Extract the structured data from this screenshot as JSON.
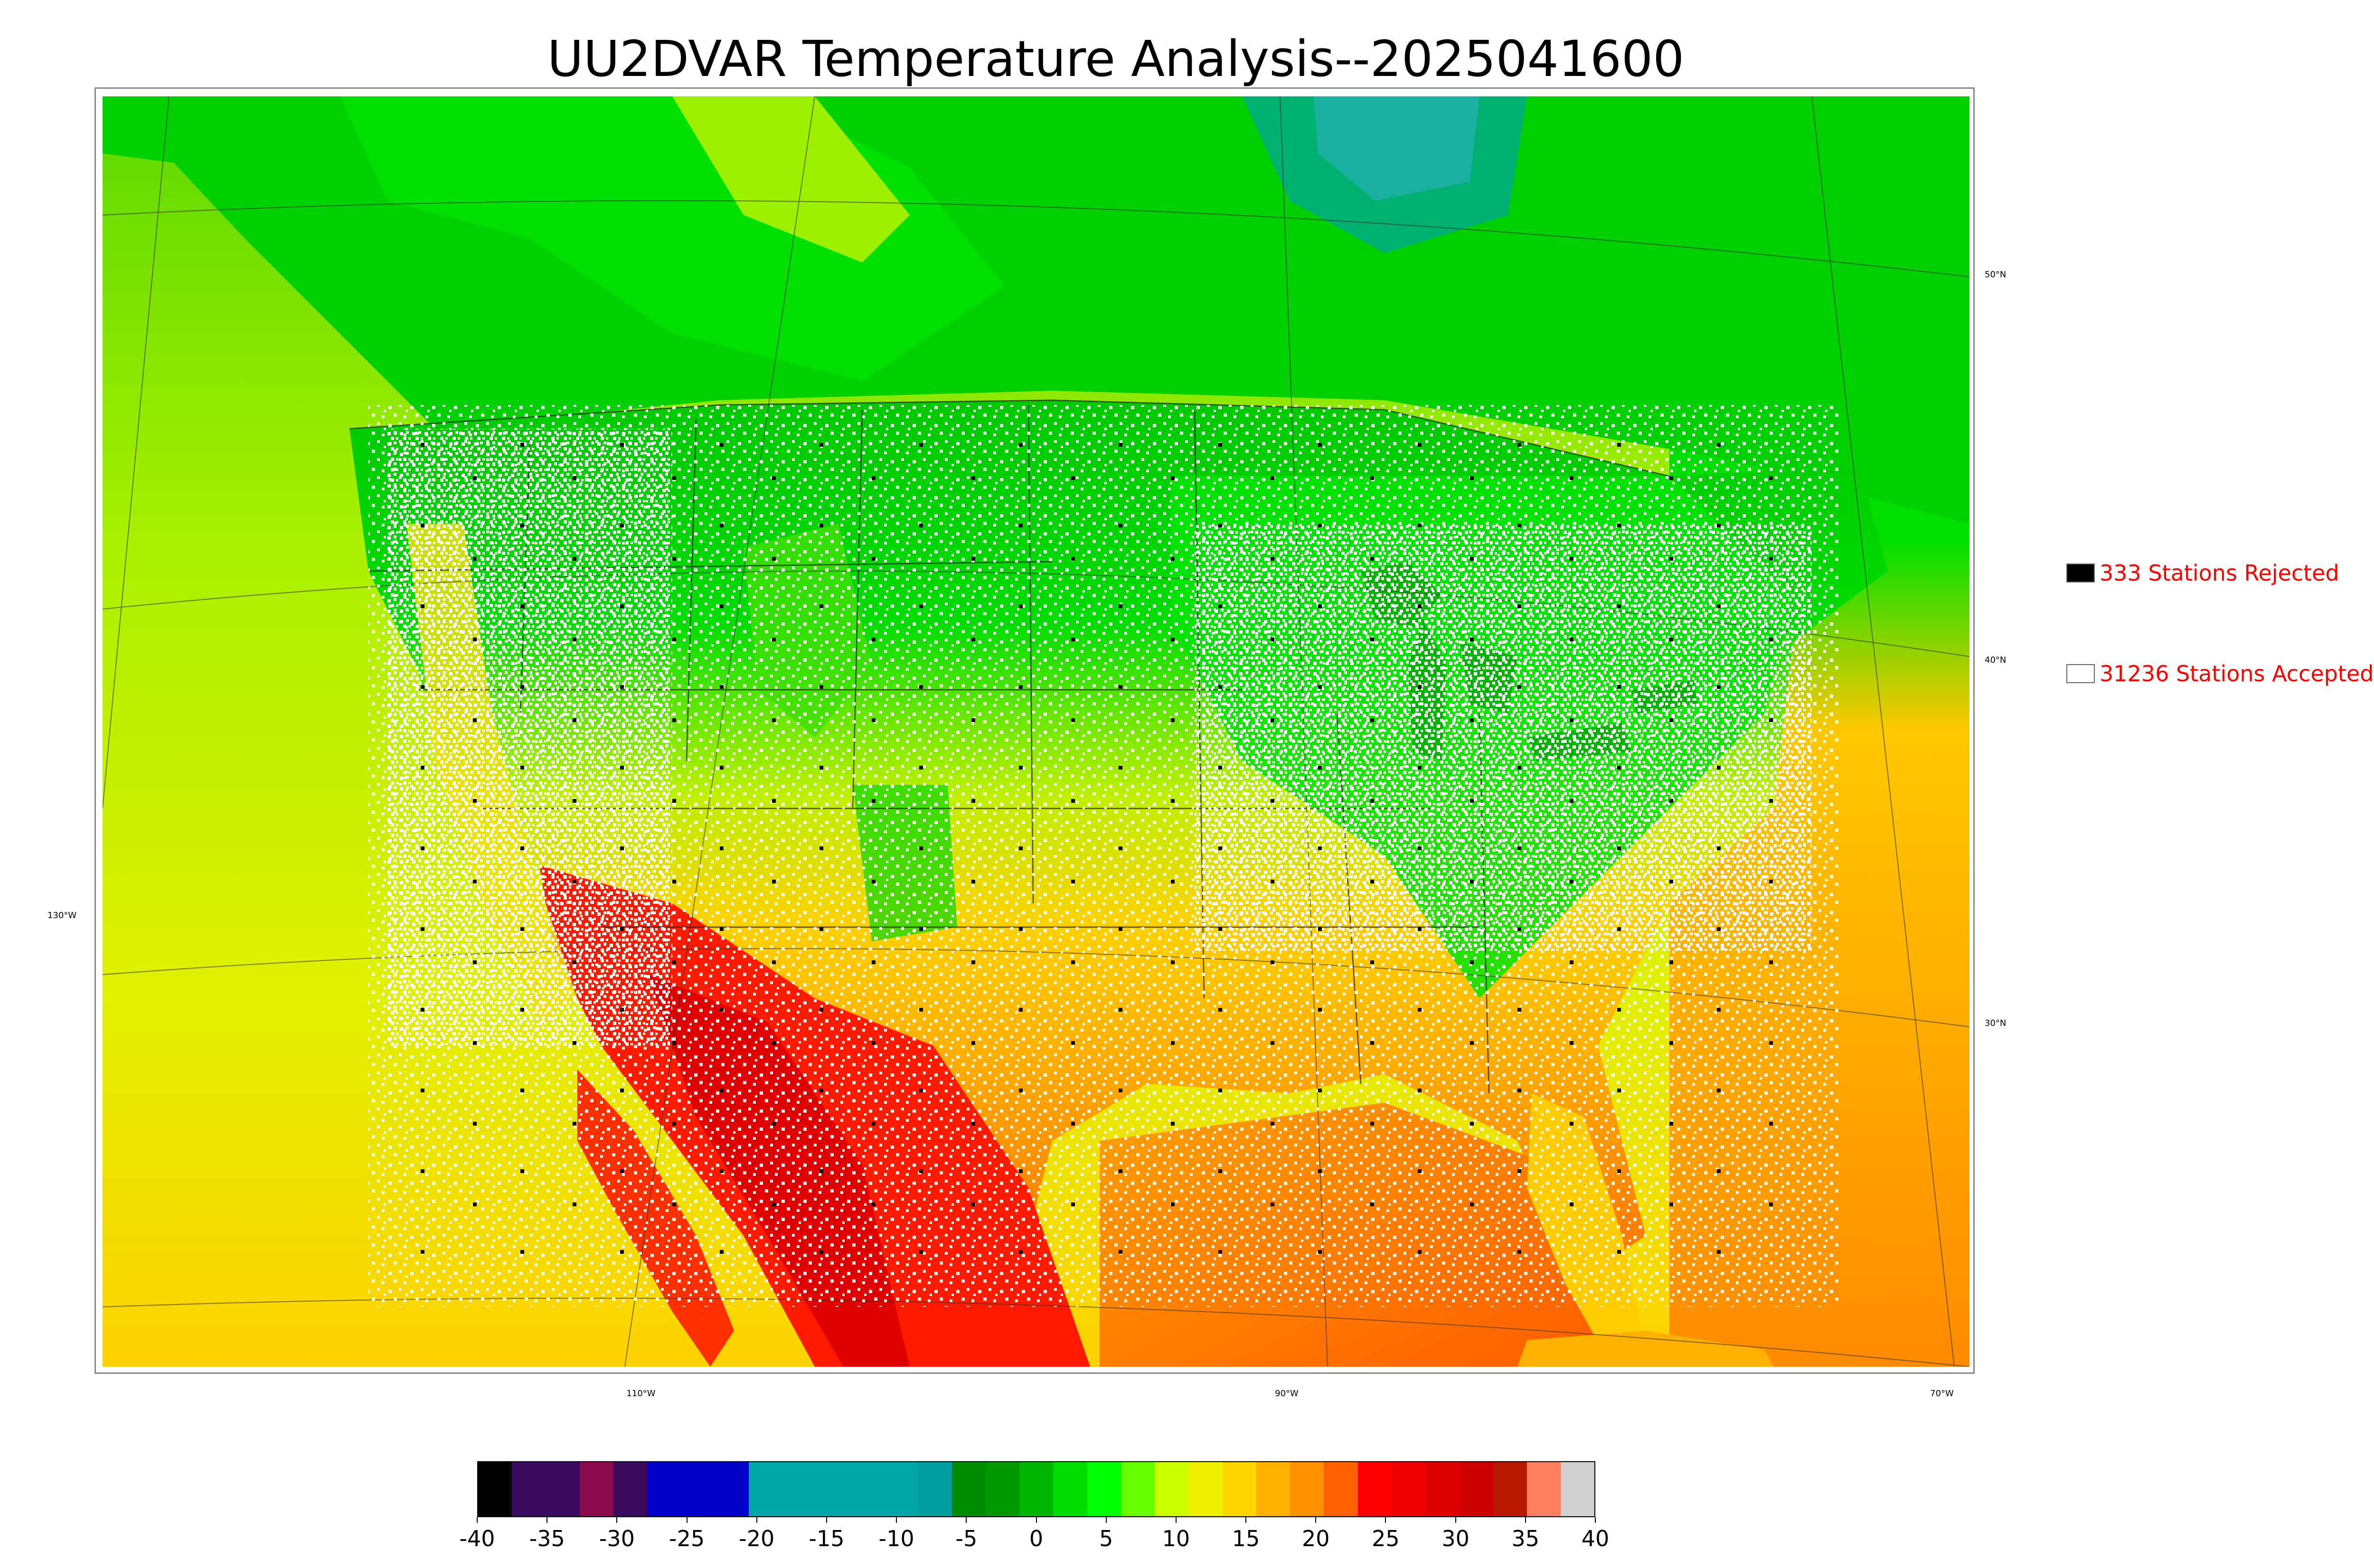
{
  "title": "UU2DVAR Temperature Analysis--2025041600",
  "map": {
    "lat_labels": [
      "50°N",
      "40°N",
      "30°N"
    ],
    "lon_labels": [
      "130°W",
      "110°W",
      "90°W",
      "70°W"
    ],
    "station_markers": {
      "accepted_color": "#ffffff",
      "rejected_color": "#000000"
    }
  },
  "legend": {
    "rejected": {
      "label": "333 Stations Rejected",
      "swatch_color": "#000000",
      "text_color": "#ff0000"
    },
    "accepted": {
      "label": "31236 Stations Accepted",
      "swatch_color": "#ffffff",
      "text_color": "#ff0000"
    }
  },
  "colorbar": {
    "tick_labels": [
      "-40",
      "-35",
      "-30",
      "-25",
      "-20",
      "-15",
      "-10",
      "-5",
      "0",
      "5",
      "10",
      "15",
      "20",
      "25",
      "30",
      "35",
      "40"
    ],
    "range": [
      -40,
      40
    ],
    "colors": [
      "#000000",
      "#3a0a5e",
      "#3a0a5e",
      "#8b0a4b",
      "#3a0a5e",
      "#0000c8",
      "#0000c8",
      "#0000c8",
      "#00a6a6",
      "#00a6a6",
      "#00a6a6",
      "#00a6a6",
      "#00a6a6",
      "#00a0a0",
      "#008c00",
      "#009600",
      "#00b400",
      "#00dc00",
      "#00ff00",
      "#66ff00",
      "#ccff00",
      "#f0f000",
      "#ffd700",
      "#ffb000",
      "#ff9000",
      "#ff6000",
      "#ff0000",
      "#ee0000",
      "#dd0000",
      "#cc0000",
      "#b81800",
      "#ff8060",
      "#d0d0d0"
    ]
  }
}
